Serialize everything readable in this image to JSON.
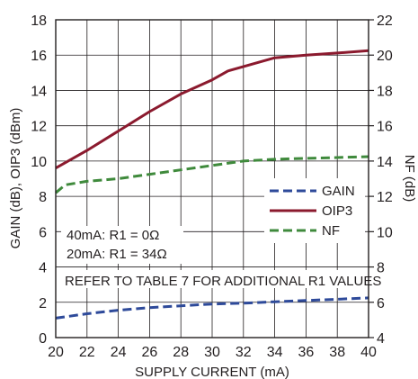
{
  "chart_data": {
    "type": "line",
    "xlabel": "SUPPLY CURRENT (mA)",
    "ylabel_left": "GAIN (dB), OIP3 (dBm)",
    "ylabel_right": "NF (dB)",
    "xlim": [
      20,
      40
    ],
    "ylim_left": [
      0,
      18
    ],
    "ylim_right": [
      4,
      22
    ],
    "x_ticks": [
      "20",
      "22",
      "24",
      "26",
      "28",
      "30",
      "32",
      "34",
      "36",
      "38",
      "40"
    ],
    "y_ticks_left": [
      "0",
      "2",
      "4",
      "6",
      "8",
      "10",
      "12",
      "14",
      "16",
      "18"
    ],
    "y_ticks_right": [
      "4",
      "6",
      "8",
      "10",
      "12",
      "14",
      "16",
      "18",
      "20",
      "22"
    ],
    "grid": true,
    "legend_position": "right",
    "series": [
      {
        "name": "GAIN",
        "axis": "left",
        "color": "#2e4a9a",
        "dash": "dashed",
        "x": [
          20,
          22,
          24,
          26,
          28,
          30,
          32,
          34,
          36,
          38,
          40
        ],
        "y": [
          1.1,
          1.35,
          1.55,
          1.7,
          1.8,
          1.9,
          1.95,
          2.03,
          2.1,
          2.17,
          2.25
        ]
      },
      {
        "name": "OIP3",
        "axis": "left",
        "color": "#8b1a2e",
        "dash": "solid",
        "x": [
          20,
          22,
          24,
          26,
          28,
          30,
          31,
          34,
          36,
          38,
          40
        ],
        "y": [
          9.6,
          10.6,
          11.7,
          12.8,
          13.8,
          14.6,
          15.1,
          15.85,
          16.0,
          16.12,
          16.25
        ]
      },
      {
        "name": "NF",
        "axis": "right",
        "color": "#3f8a3c",
        "dash": "dashed",
        "x": [
          20,
          20.6,
          22,
          24,
          26,
          28,
          30,
          32,
          34,
          36,
          38,
          40
        ],
        "y": [
          12.2,
          12.65,
          12.85,
          13.0,
          13.25,
          13.5,
          13.75,
          14.0,
          14.1,
          14.15,
          14.2,
          14.25
        ]
      }
    ],
    "annotations": {
      "line1": "40mA: R1 = 0Ω",
      "line2": "20mA: R1 = 34Ω",
      "note": "REFER TO TABLE 7 FOR ADDITIONAL R1 VALUES"
    }
  }
}
